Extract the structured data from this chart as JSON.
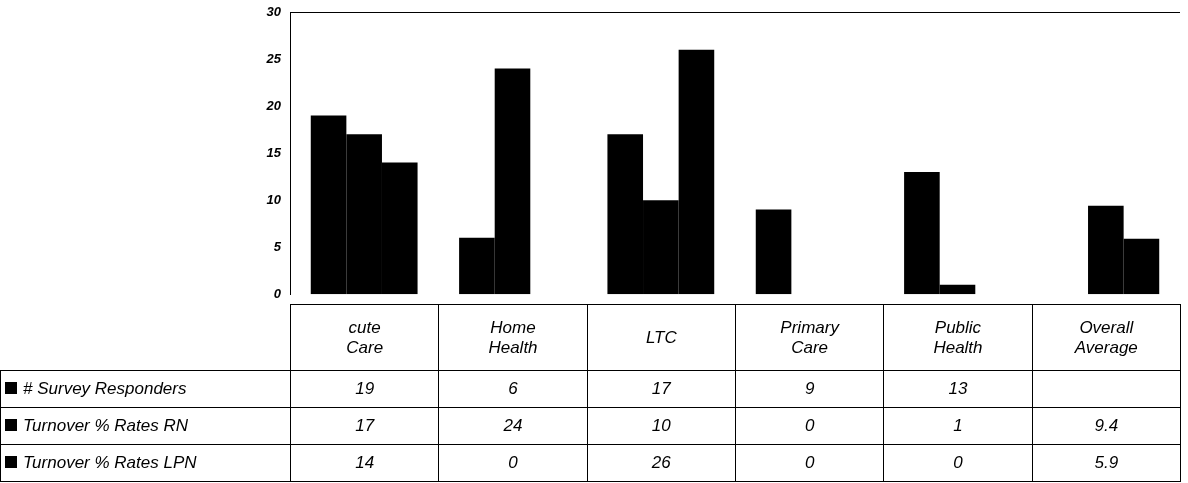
{
  "chart_data": {
    "type": "bar",
    "categories": [
      "cute Care",
      "Home Health",
      "LTC",
      "Primary Care",
      "Public Health",
      "Overall Average"
    ],
    "series": [
      {
        "name": "# Survey Responders",
        "color": "#000000",
        "values": [
          19,
          6,
          17,
          9,
          13,
          null
        ]
      },
      {
        "name": "Turnover % Rates RN",
        "color": "#000000",
        "values": [
          17,
          24,
          10,
          0,
          1,
          9.4
        ]
      },
      {
        "name": "Turnover % Rates LPN",
        "color": "#000000",
        "values": [
          14,
          0,
          26,
          0,
          0,
          5.9
        ]
      }
    ],
    "ylim": [
      0,
      30
    ],
    "yticks": [
      0,
      5,
      10,
      15,
      20,
      25,
      30
    ],
    "grid": false,
    "legend": "bottom left",
    "data_labels": true
  }
}
